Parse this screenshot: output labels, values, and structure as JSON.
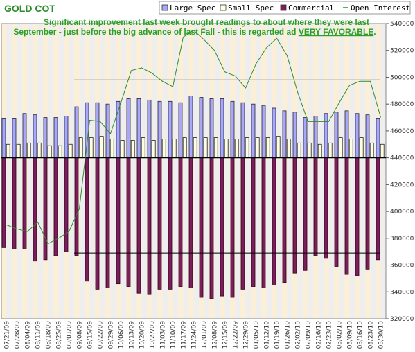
{
  "chart_data": {
    "type": "bar",
    "title": "GOLD COT",
    "annotation": {
      "line1": "Significant improvement last week brought readings to about where they were last",
      "line2_prefix": "September -  just before the big advance of last Fall - this is regarded ad ",
      "line2_emphasis": "VERY FAVORABLE",
      "line2_suffix": "."
    },
    "legend": {
      "placement": "top-right",
      "entries": [
        "Large Spec",
        "Small Spec",
        "Commercial",
        "Open Interest"
      ]
    },
    "colors": {
      "large_spec": "#a8a8f8",
      "small_spec": "#ffffe0",
      "commercial": "#7a1f5a",
      "open_interest": "#2e8b2e",
      "band_a": "#fbefd8",
      "band_b": "#eeeeee",
      "title": "#2e8b2e",
      "annotation": "#2aa02a"
    },
    "x_labels": [
      "07/21/09",
      "07/28/09",
      "08/04/09",
      "08/11/09",
      "08/18/09",
      "08/25/09",
      "09/01/09",
      "09/08/09",
      "09/15/09",
      "09/22/09",
      "09/29/09",
      "10/06/09",
      "10/13/09",
      "10/20/09",
      "10/27/09",
      "11/03/09",
      "11/10/09",
      "11/17/09",
      "11/24/09",
      "12/01/09",
      "12/08/09",
      "12/15/09",
      "12/22/09",
      "12/29/09",
      "01/05/10",
      "01/12/10",
      "01/19/10",
      "01/26/10",
      "02/02/10",
      "02/09/10",
      "02/16/10",
      "02/23/10",
      "03/02/10",
      "03/09/10",
      "03/16/10",
      "03/23/10",
      "03/30/10"
    ],
    "y_axis": {
      "side": "right",
      "range": [
        320000,
        540000
      ],
      "ticks": [
        "320000",
        "340000",
        "360000",
        "380000",
        "400000",
        "420000",
        "440000",
        "460000",
        "480000",
        "500000",
        "520000",
        "540000"
      ],
      "zero_level": 440000
    },
    "series": [
      {
        "name": "Large Spec",
        "values": [
          29000,
          29000,
          33000,
          32000,
          30000,
          30000,
          31000,
          38000,
          41000,
          41000,
          40000,
          42000,
          44000,
          44000,
          43000,
          42000,
          42000,
          41000,
          46000,
          45000,
          44000,
          44000,
          42000,
          41000,
          40000,
          39000,
          37000,
          35000,
          34000,
          30000,
          31000,
          33000,
          34000,
          35000,
          33000,
          32000,
          29000
        ]
      },
      {
        "name": "Small Spec",
        "values": [
          10000,
          10000,
          11000,
          11000,
          9000,
          9000,
          10000,
          15000,
          15000,
          16000,
          14000,
          13000,
          13000,
          15000,
          13000,
          14000,
          14000,
          15000,
          15000,
          15000,
          15000,
          14000,
          14000,
          15000,
          15000,
          15000,
          16000,
          14000,
          11000,
          11000,
          10000,
          11000,
          15000,
          14000,
          15000,
          11000,
          10000
        ]
      },
      {
        "name": "Commercial",
        "values": [
          -67000,
          -68000,
          -68000,
          -77000,
          -76000,
          -73000,
          -70000,
          -73000,
          -92000,
          -98000,
          -97000,
          -94000,
          -96000,
          -101000,
          -102000,
          -98000,
          -98000,
          -96000,
          -97000,
          -104000,
          -105000,
          -103000,
          -104000,
          -98000,
          -96000,
          -97000,
          -95000,
          -93000,
          -86000,
          -84000,
          -73000,
          -75000,
          -81000,
          -87000,
          -88000,
          -83000,
          -76000
        ]
      },
      {
        "name": "Open Interest",
        "values": [
          390000,
          387000,
          385000,
          392000,
          376000,
          380000,
          385000,
          402000,
          468000,
          467000,
          458000,
          481000,
          505000,
          507000,
          503000,
          497000,
          493000,
          530000,
          535000,
          528000,
          520000,
          504000,
          501000,
          492000,
          510000,
          522000,
          529000,
          516000,
          489000,
          467000,
          467000,
          467000,
          481000,
          494000,
          497000,
          497000,
          470000
        ]
      }
    ],
    "reference_lines": [
      498000,
      369000
    ],
    "grid": false
  }
}
